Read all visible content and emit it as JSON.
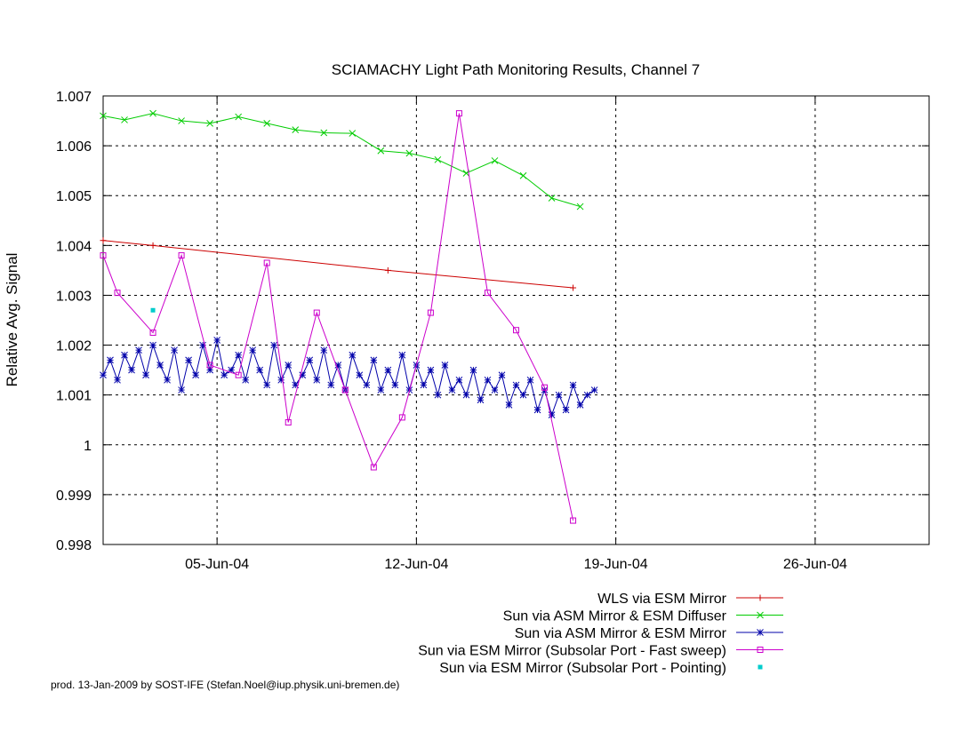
{
  "chart_data": {
    "type": "line",
    "title": "SCIAMACHY Light Path Monitoring Results, Channel 7",
    "xlabel": "",
    "ylabel": "Relative Avg. Signal",
    "x_range": [
      "2004-06-01",
      "2004-06-30"
    ],
    "ylim": [
      0.998,
      1.007
    ],
    "y_ticks": [
      0.998,
      0.999,
      1,
      1.001,
      1.002,
      1.003,
      1.004,
      1.005,
      1.006,
      1.007
    ],
    "x_ticks": [
      {
        "date": "2004-06-05",
        "label": "05-Jun-04"
      },
      {
        "date": "2004-06-12",
        "label": "12-Jun-04"
      },
      {
        "date": "2004-06-19",
        "label": "19-Jun-04"
      },
      {
        "date": "2004-06-26",
        "label": "26-Jun-04"
      }
    ],
    "grid": true,
    "legend_position": "bottom",
    "series": [
      {
        "name": "WLS via ESM Mirror",
        "color": "#cc0000",
        "marker": "plus",
        "line": true,
        "x": [
          "2004-06-01T00:00",
          "2004-06-02T18:00",
          "2004-06-11T00:00",
          "2004-06-17T12:00"
        ],
        "y": [
          1.0041,
          1.004,
          1.0035,
          1.00315
        ]
      },
      {
        "name": "Sun via ASM Mirror & ESM Diffuser",
        "color": "#00cc00",
        "marker": "cross",
        "line": true,
        "x": [
          "2004-06-01T00:00",
          "2004-06-01T18:00",
          "2004-06-02T18:00",
          "2004-06-03T18:00",
          "2004-06-04T18:00",
          "2004-06-05T18:00",
          "2004-06-06T18:00",
          "2004-06-07T18:00",
          "2004-06-08T18:00",
          "2004-06-09T18:00",
          "2004-06-10T18:00",
          "2004-06-11T18:00",
          "2004-06-12T18:00",
          "2004-06-13T18:00",
          "2004-06-14T18:00",
          "2004-06-15T18:00",
          "2004-06-16T18:00",
          "2004-06-17T18:00"
        ],
        "y": [
          1.0066,
          1.00652,
          1.00665,
          1.0065,
          1.00645,
          1.00658,
          1.00645,
          1.00632,
          1.00626,
          1.00625,
          1.0059,
          1.00585,
          1.00572,
          1.00545,
          1.0057,
          1.0054,
          1.00495,
          1.00478
        ]
      },
      {
        "name": "Sun via ASM Mirror & ESM Mirror",
        "color": "#0000aa",
        "marker": "star",
        "line": true,
        "x": [
          "2004-06-01T00:00",
          "2004-06-01T06:00",
          "2004-06-01T12:00",
          "2004-06-01T18:00",
          "2004-06-02T00:00",
          "2004-06-02T06:00",
          "2004-06-02T12:00",
          "2004-06-02T18:00",
          "2004-06-03T00:00",
          "2004-06-03T06:00",
          "2004-06-03T12:00",
          "2004-06-03T18:00",
          "2004-06-04T00:00",
          "2004-06-04T06:00",
          "2004-06-04T12:00",
          "2004-06-04T18:00",
          "2004-06-05T00:00",
          "2004-06-05T06:00",
          "2004-06-05T12:00",
          "2004-06-05T18:00",
          "2004-06-06T00:00",
          "2004-06-06T06:00",
          "2004-06-06T12:00",
          "2004-06-06T18:00",
          "2004-06-07T00:00",
          "2004-06-07T06:00",
          "2004-06-07T12:00",
          "2004-06-07T18:00",
          "2004-06-08T00:00",
          "2004-06-08T06:00",
          "2004-06-08T12:00",
          "2004-06-08T18:00",
          "2004-06-09T00:00",
          "2004-06-09T06:00",
          "2004-06-09T12:00",
          "2004-06-09T18:00",
          "2004-06-10T00:00",
          "2004-06-10T06:00",
          "2004-06-10T12:00",
          "2004-06-10T18:00",
          "2004-06-11T00:00",
          "2004-06-11T06:00",
          "2004-06-11T12:00",
          "2004-06-11T18:00",
          "2004-06-12T00:00",
          "2004-06-12T06:00",
          "2004-06-12T12:00",
          "2004-06-12T18:00",
          "2004-06-13T00:00",
          "2004-06-13T06:00",
          "2004-06-13T12:00",
          "2004-06-13T18:00",
          "2004-06-14T00:00",
          "2004-06-14T06:00",
          "2004-06-14T12:00",
          "2004-06-14T18:00",
          "2004-06-15T00:00",
          "2004-06-15T06:00",
          "2004-06-15T12:00",
          "2004-06-15T18:00",
          "2004-06-16T00:00",
          "2004-06-16T06:00",
          "2004-06-16T12:00",
          "2004-06-16T18:00",
          "2004-06-17T00:00",
          "2004-06-17T06:00",
          "2004-06-17T12:00",
          "2004-06-17T18:00",
          "2004-06-18T00:00",
          "2004-06-18T06:00"
        ],
        "y": [
          1.0014,
          1.0017,
          1.0013,
          1.0018,
          1.0015,
          1.0019,
          1.0014,
          1.002,
          1.0016,
          1.0013,
          1.0019,
          1.0011,
          1.0017,
          1.0014,
          1.002,
          1.0015,
          1.0021,
          1.0014,
          1.0015,
          1.0018,
          1.0013,
          1.0019,
          1.0015,
          1.0012,
          1.002,
          1.0013,
          1.0016,
          1.0012,
          1.0014,
          1.0017,
          1.0013,
          1.0019,
          1.0012,
          1.0016,
          1.0011,
          1.0018,
          1.0014,
          1.0012,
          1.0017,
          1.0011,
          1.0015,
          1.0012,
          1.0018,
          1.0011,
          1.0016,
          1.0012,
          1.0015,
          1.001,
          1.0016,
          1.0011,
          1.0013,
          1.001,
          1.0015,
          1.0009,
          1.0013,
          1.0011,
          1.0014,
          1.0008,
          1.0012,
          1.001,
          1.0013,
          1.0007,
          1.0011,
          1.0006,
          1.001,
          1.0007,
          1.0012,
          1.0008,
          1.001,
          1.0011
        ]
      },
      {
        "name": "Sun via ESM Mirror (Subsolar Port - Fast sweep)",
        "color": "#cc00cc",
        "marker": "square",
        "line": true,
        "x": [
          "2004-06-01T00:00",
          "2004-06-01T12:00",
          "2004-06-02T18:00",
          "2004-06-03T18:00",
          "2004-06-04T18:00",
          "2004-06-05T18:00",
          "2004-06-06T18:00",
          "2004-06-07T12:00",
          "2004-06-08T12:00",
          "2004-06-09T12:00",
          "2004-06-10T12:00",
          "2004-06-11T12:00",
          "2004-06-12T12:00",
          "2004-06-13T12:00",
          "2004-06-14T12:00",
          "2004-06-15T12:00",
          "2004-06-16T12:00",
          "2004-06-17T12:00"
        ],
        "y": [
          1.0038,
          1.00305,
          1.00225,
          1.0038,
          1.0016,
          1.0014,
          1.00365,
          1.00045,
          1.00265,
          1.0011,
          0.99955,
          1.00055,
          1.00265,
          1.00665,
          1.00305,
          1.0023,
          1.00115,
          0.99848
        ]
      },
      {
        "name": "Sun via ESM Mirror (Subsolar Port - Pointing)",
        "color": "#00cccc",
        "marker": "dot",
        "line": false,
        "x": [
          "2004-06-02T18:00"
        ],
        "y": [
          1.0027
        ]
      }
    ]
  },
  "footer": {
    "text": "prod. 13-Jan-2009 by SOST-IFE (Stefan.Noel@iup.physik.uni-bremen.de)"
  }
}
